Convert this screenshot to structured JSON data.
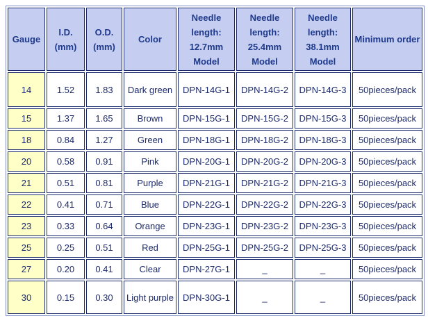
{
  "table": {
    "header": [
      "Gauge",
      "I.D. (mm)",
      "O.D. (mm)",
      "Color",
      "Needle length: 12.7mm Model",
      "Needle length: 25.4mm Model",
      "Needle length: 38.1mm Model",
      "Minimum order"
    ],
    "rows": [
      [
        "14",
        "1.52",
        "1.83",
        "Dark green",
        "DPN-14G-1",
        "DPN-14G-2",
        "DPN-14G-3",
        "50pieces/pack"
      ],
      [
        "15",
        "1.37",
        "1.65",
        "Brown",
        "DPN-15G-1",
        "DPN-15G-2",
        "DPN-15G-3",
        "50pieces/pack"
      ],
      [
        "18",
        "0.84",
        "1.27",
        "Green",
        "DPN-18G-1",
        "DPN-18G-2",
        "DPN-18G-3",
        "50pieces/pack"
      ],
      [
        "20",
        "0.58",
        "0.91",
        "Pink",
        "DPN-20G-1",
        "DPN-20G-2",
        "DPN-20G-3",
        "50pieces/pack"
      ],
      [
        "21",
        "0.51",
        "0.81",
        "Purple",
        "DPN-21G-1",
        "DPN-21G-2",
        "DPN-21G-3",
        "50pieces/pack"
      ],
      [
        "22",
        "0.41",
        "0.71",
        "Blue",
        "DPN-22G-1",
        "DPN-22G-2",
        "DPN-22G-3",
        "50pieces/pack"
      ],
      [
        "23",
        "0.33",
        "0.64",
        "Orange",
        "DPN-23G-1",
        "DPN-23G-2",
        "DPN-23G-3",
        "50pieces/pack"
      ],
      [
        "25",
        "0.25",
        "0.51",
        "Red",
        "DPN-25G-1",
        "DPN-25G-2",
        "DPN-25G-3",
        "50pieces/pack"
      ],
      [
        "27",
        "0.20",
        "0.41",
        "Clear",
        "DPN-27G-1",
        "_",
        "_",
        "50pieces/pack"
      ],
      [
        "30",
        "0.15",
        "0.30",
        "Light purple",
        "DPN-30G-1",
        "_",
        "_",
        "50pieces/pack"
      ]
    ]
  }
}
